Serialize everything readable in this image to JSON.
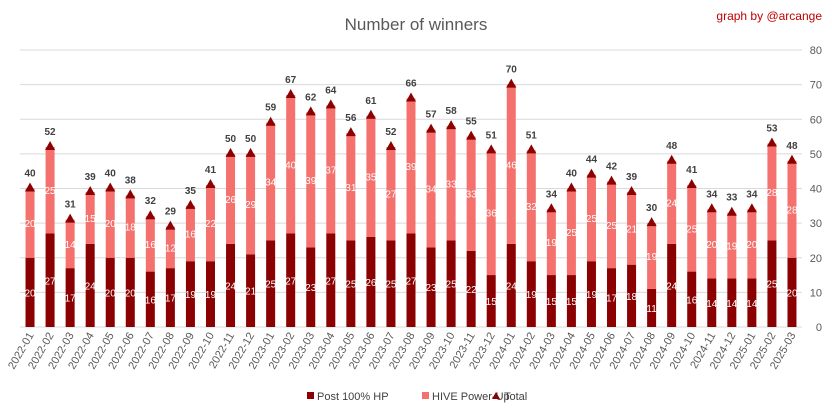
{
  "chart_data": {
    "type": "bar",
    "stacked": true,
    "title": "Number of winners",
    "credit": "graph by @arcange",
    "categories": [
      "2022-01",
      "2022-02",
      "2022-03",
      "2022-04",
      "2022-05",
      "2022-06",
      "2022-07",
      "2022-08",
      "2022-09",
      "2022-10",
      "2022-11",
      "2022-12",
      "2023-01",
      "2023-02",
      "2023-03",
      "2023-04",
      "2023-05",
      "2023-06",
      "2023-07",
      "2023-08",
      "2023-09",
      "2023-10",
      "2023-11",
      "2023-12",
      "2024-01",
      "2024-02",
      "2024-03",
      "2024-04",
      "2024-05",
      "2024-06",
      "2024-07",
      "2024-08",
      "2024-09",
      "2024-10",
      "2024-11",
      "2024-12",
      "2025-01",
      "2025-02",
      "2025-03"
    ],
    "series": [
      {
        "name": "Post 100% HP",
        "color": "#8b0000",
        "labelColor": "#ffffff",
        "values": [
          20,
          27,
          17,
          24,
          20,
          20,
          16,
          17,
          19,
          19,
          24,
          21,
          25,
          27,
          23,
          27,
          25,
          26,
          25,
          27,
          23,
          25,
          22,
          15,
          24,
          19,
          15,
          15,
          19,
          17,
          18,
          11,
          24,
          16,
          14,
          14,
          14,
          25,
          20
        ]
      },
      {
        "name": "HIVE Power-Up",
        "color": "#f4716e",
        "labelColor": "#ffffff",
        "values": [
          20,
          25,
          14,
          15,
          20,
          18,
          16,
          12,
          16,
          22,
          26,
          29,
          34,
          40,
          39,
          37,
          31,
          35,
          27,
          39,
          34,
          33,
          33,
          36,
          46,
          32,
          19,
          25,
          25,
          25,
          21,
          19,
          24,
          25,
          20,
          19,
          20,
          28,
          28
        ]
      }
    ],
    "totals": {
      "name": "Total",
      "color": "#8b0000",
      "values": [
        40,
        52,
        31,
        39,
        40,
        38,
        32,
        29,
        35,
        41,
        50,
        50,
        59,
        67,
        62,
        64,
        56,
        61,
        52,
        66,
        57,
        58,
        55,
        51,
        70,
        51,
        34,
        40,
        44,
        42,
        39,
        30,
        48,
        41,
        34,
        33,
        34,
        53,
        48
      ]
    },
    "yaxis": {
      "side": "right",
      "ylim": [
        0,
        80
      ],
      "ticks": [
        0,
        10,
        20,
        30,
        40,
        50,
        60,
        70,
        80
      ]
    },
    "grid": true,
    "legend": "bottom"
  }
}
